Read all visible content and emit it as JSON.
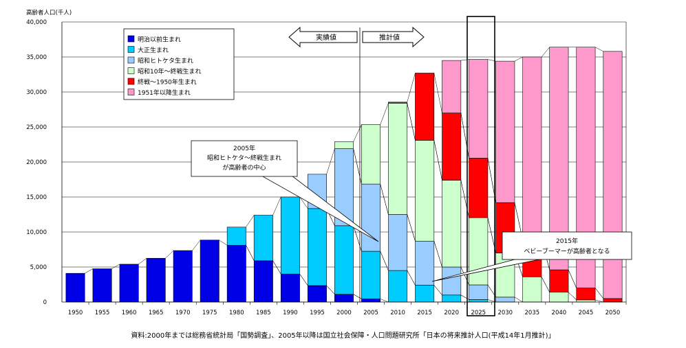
{
  "chart_data": {
    "type": "bar",
    "stacked": true,
    "ylabel": "高齢者人口(千人)",
    "ylim": [
      0,
      40000
    ],
    "yticks": [
      "0",
      "5,000",
      "10,000",
      "15,000",
      "20,000",
      "25,000",
      "30,000",
      "35,000",
      "40,000"
    ],
    "categories": [
      "1950",
      "1955",
      "1960",
      "1965",
      "1970",
      "1975",
      "1980",
      "1985",
      "1990",
      "1995",
      "2000",
      "2005",
      "2010",
      "2015",
      "2020",
      "2025",
      "2030",
      "2035",
      "2040",
      "2045",
      "2050"
    ],
    "series": [
      {
        "name": "明治以前生まれ",
        "color": "#0000e6",
        "values": [
          4100,
          4750,
          5400,
          6250,
          7350,
          8850,
          8100,
          5900,
          4000,
          2350,
          1100,
          450,
          0,
          0,
          0,
          0,
          0,
          0,
          0,
          0,
          0
        ]
      },
      {
        "name": "大正生まれ",
        "color": "#00ccff",
        "values": [
          0,
          0,
          0,
          0,
          0,
          0,
          2600,
          6500,
          11000,
          11000,
          9800,
          6800,
          4500,
          2400,
          1000,
          350,
          0,
          0,
          0,
          0,
          0
        ]
      },
      {
        "name": "昭和ヒトケタ生まれ",
        "color": "#99ccff",
        "values": [
          0,
          0,
          0,
          0,
          0,
          0,
          0,
          0,
          0,
          4900,
          11000,
          9600,
          8000,
          6300,
          4000,
          2100,
          700,
          0,
          0,
          0,
          0
        ]
      },
      {
        "name": "昭和10年～終戦生まれ",
        "color": "#ccffcc",
        "values": [
          0,
          0,
          0,
          0,
          0,
          0,
          0,
          0,
          0,
          0,
          1000,
          8500,
          15900,
          14400,
          12400,
          9600,
          6300,
          3600,
          1400,
          300,
          0
        ]
      },
      {
        "name": "終戦～1950年生まれ",
        "color": "#ff0000",
        "values": [
          0,
          0,
          0,
          0,
          0,
          0,
          0,
          0,
          0,
          0,
          0,
          0,
          150,
          9600,
          9600,
          8500,
          7200,
          5300,
          3200,
          1700,
          500
        ]
      },
      {
        "name": "1951年以降生まれ",
        "color": "#ff99cc",
        "values": [
          0,
          0,
          0,
          0,
          0,
          0,
          0,
          0,
          0,
          0,
          0,
          0,
          0,
          0,
          7500,
          14100,
          20200,
          26100,
          31800,
          34400,
          35300
        ]
      }
    ],
    "annotations": {
      "actual": "実績値",
      "estimate": "推計値",
      "callout_2005": [
        "2005年",
        "昭和ヒトケタ～終戦生まれ",
        "が高齢者の中心"
      ],
      "callout_2015": [
        "2015年",
        "ベビーブーマーが高齢者となる"
      ]
    },
    "highlight_category": "2025",
    "source": "資料:2000年までは総務省統計局「国勢調査」、2005年以降は国立社会保障・人口問題研究所「日本の将来推計人口(平成14年1月推計)」"
  }
}
